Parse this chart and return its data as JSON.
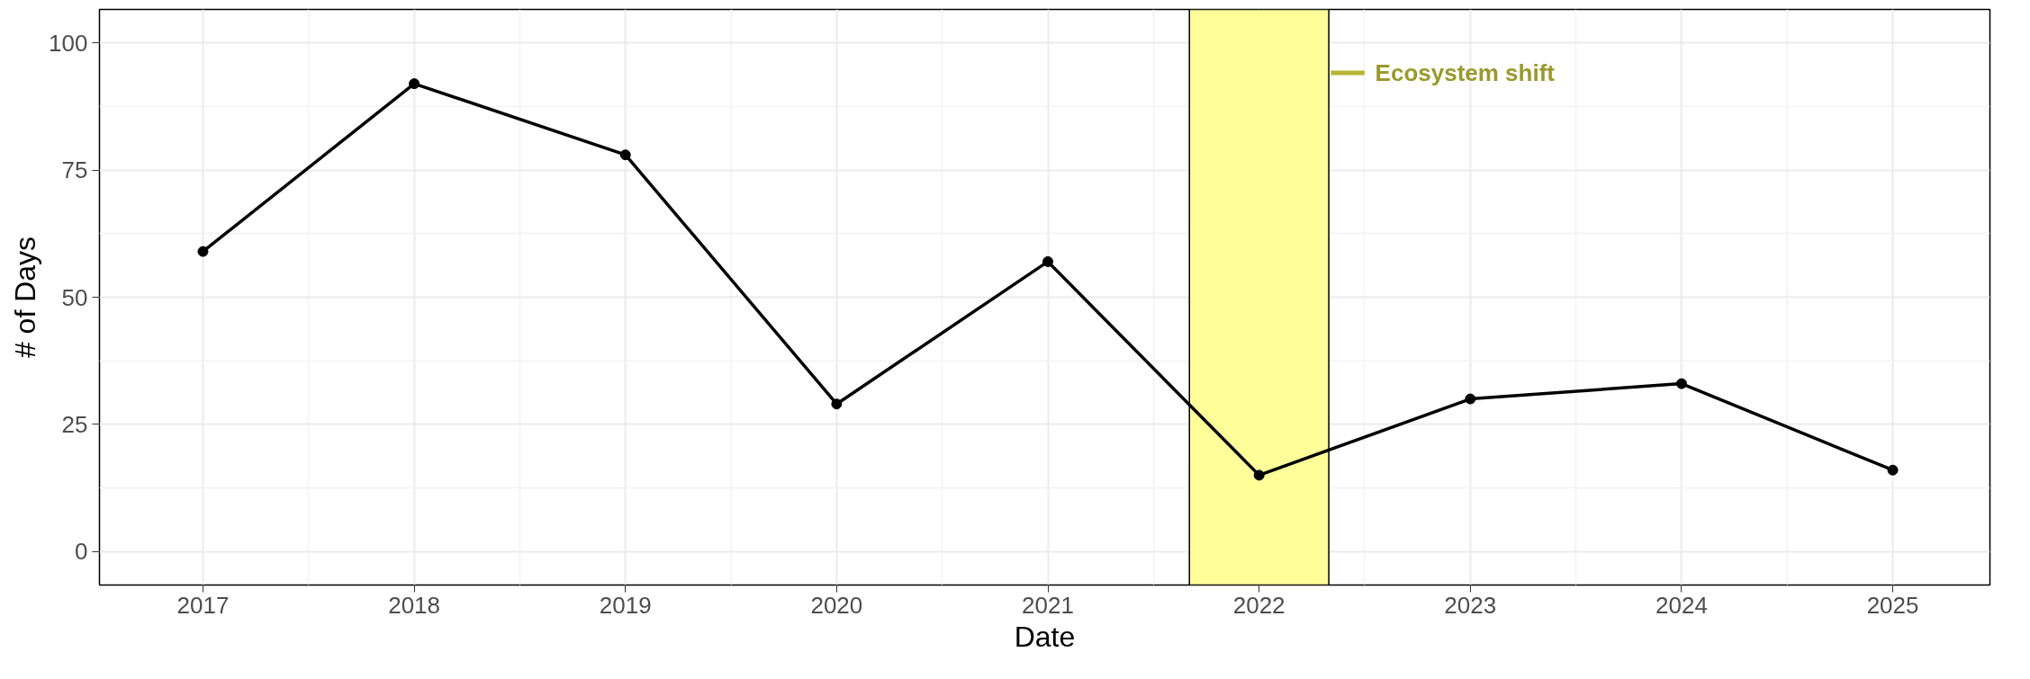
{
  "chart_data": {
    "type": "line",
    "xlabel": "Date",
    "ylabel": "# of Days",
    "x": [
      2017,
      2018,
      2019,
      2020,
      2021,
      2022,
      2023,
      2024,
      2025
    ],
    "series": [
      {
        "color": "#000000",
        "values": [
          59,
          92,
          78,
          29,
          57,
          15,
          30,
          33,
          16
        ]
      }
    ],
    "xlim": [
      2016.51,
      2025.46
    ],
    "ylim": [
      -6.6,
      106.6
    ],
    "xticks": [
      2017,
      2018,
      2019,
      2020,
      2021,
      2022,
      2023,
      2024,
      2025
    ],
    "yticks": [
      0,
      25,
      50,
      75,
      100
    ],
    "bands": [
      {
        "axis": "x",
        "from": 2021.67,
        "to": 2022.33,
        "label": "Ecosystem shift",
        "color": "#ffff99"
      }
    ],
    "grid": true,
    "marker": "circle",
    "line_style": "solid"
  }
}
